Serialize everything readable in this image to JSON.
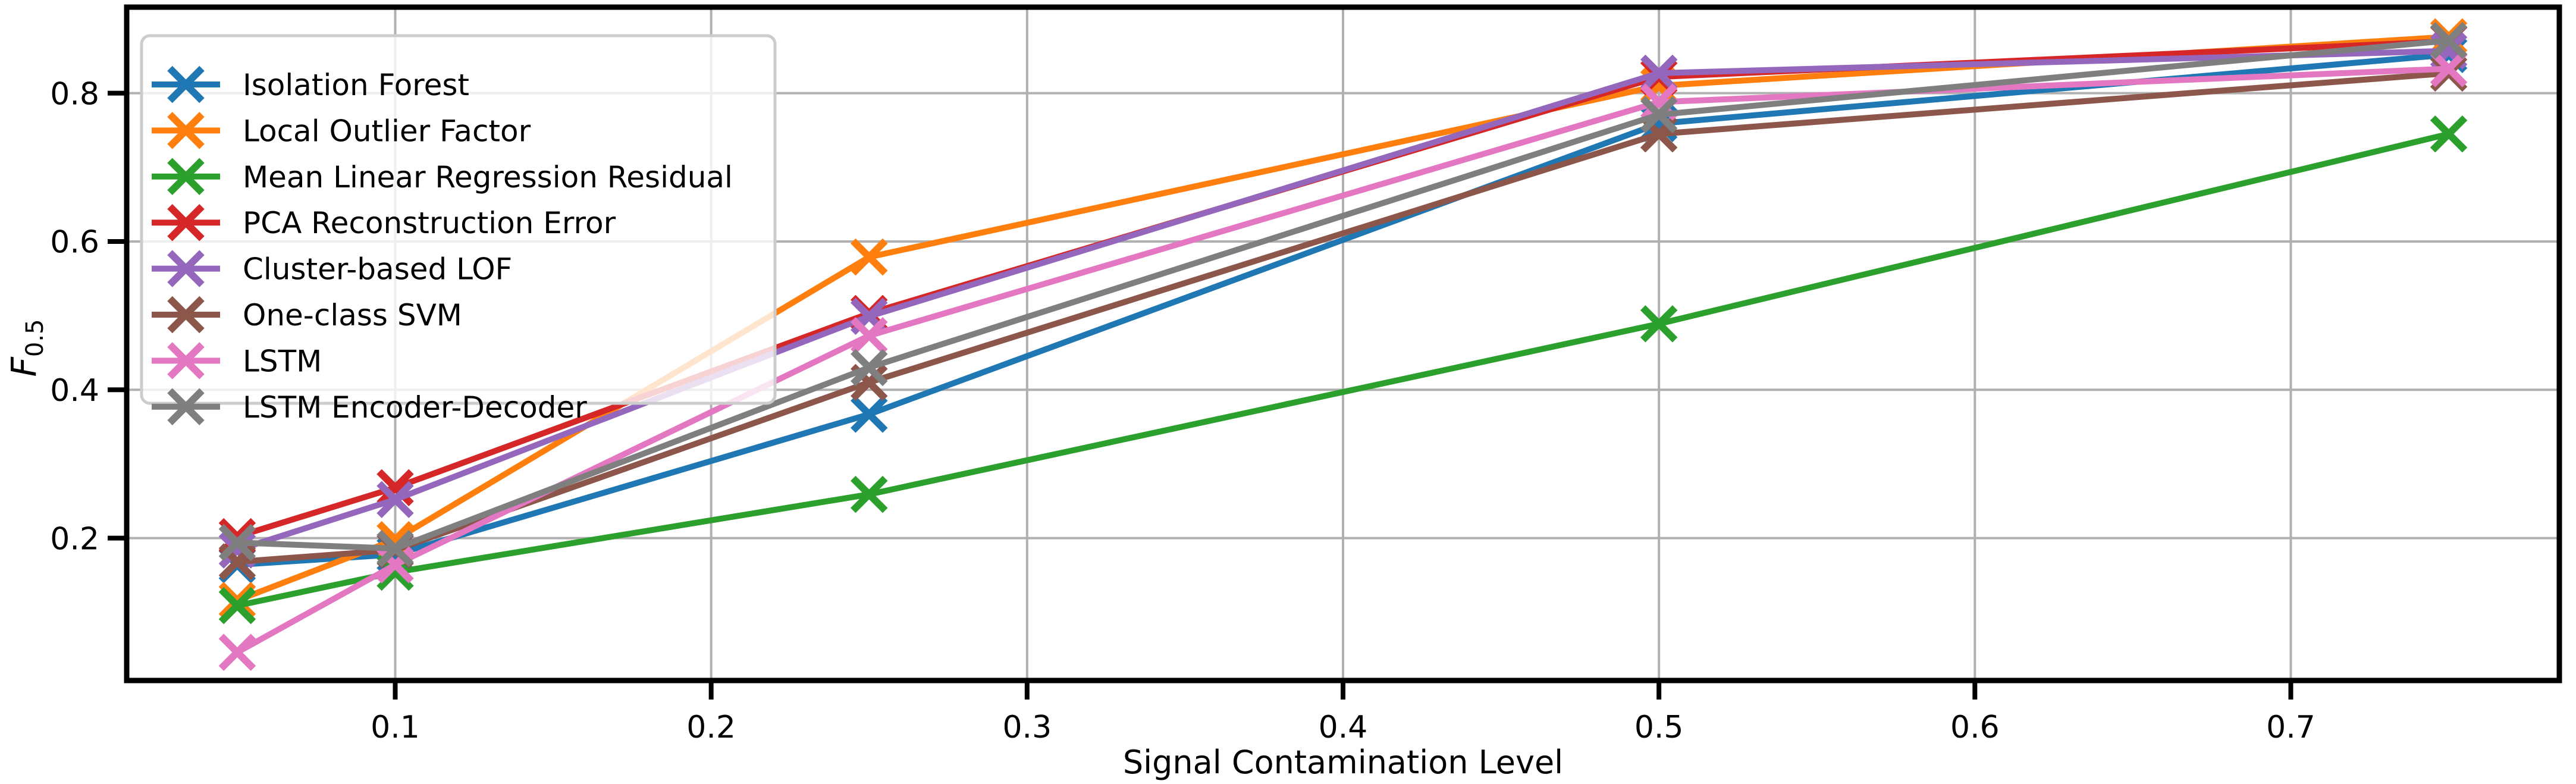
{
  "chart_data": {
    "type": "line",
    "title": "",
    "xlabel": "Signal Contamination Level",
    "ylabel_main": "F",
    "ylabel_sub": "0.5",
    "x": [
      0.05,
      0.1,
      0.25,
      0.5,
      0.75
    ],
    "series": [
      {
        "name": "Isolation Forest",
        "color": "#1f77b4",
        "values": [
          0.164,
          0.178,
          0.367,
          0.759,
          0.852
        ]
      },
      {
        "name": "Local Outlier Factor",
        "color": "#ff7f0e",
        "values": [
          0.116,
          0.198,
          0.579,
          0.81,
          0.876
        ]
      },
      {
        "name": "Mean Linear Regression Residual",
        "color": "#2ca02c",
        "values": [
          0.109,
          0.154,
          0.259,
          0.489,
          0.745
        ]
      },
      {
        "name": "PCA Reconstruction Error",
        "color": "#d62728",
        "values": [
          0.202,
          0.268,
          0.503,
          0.822,
          0.87
        ]
      },
      {
        "name": "Cluster-based LOF",
        "color": "#9467bd",
        "values": [
          0.184,
          0.252,
          0.499,
          0.827,
          0.857
        ]
      },
      {
        "name": "One-class SVM",
        "color": "#8c564b",
        "values": [
          0.168,
          0.184,
          0.41,
          0.745,
          0.827
        ]
      },
      {
        "name": "LSTM",
        "color": "#e377c2",
        "values": [
          0.046,
          0.164,
          0.473,
          0.788,
          0.833
        ]
      },
      {
        "name": "LSTM Encoder-Decoder",
        "color": "#7f7f7f",
        "values": [
          0.194,
          0.186,
          0.43,
          0.771,
          0.871
        ]
      }
    ],
    "xlim": [
      0.015,
      0.785
    ],
    "ylim": [
      0.008,
      0.916
    ],
    "xticks": [
      0.1,
      0.2,
      0.3,
      0.4,
      0.5,
      0.6,
      0.7
    ],
    "xtick_labels": [
      "0.1",
      "0.2",
      "0.3",
      "0.4",
      "0.5",
      "0.6",
      "0.7"
    ],
    "yticks": [
      0.2,
      0.4,
      0.6,
      0.8
    ],
    "ytick_labels": [
      "0.2",
      "0.4",
      "0.6",
      "0.8"
    ],
    "grid": true,
    "grid_color": "#b0b0b0",
    "axes_color": "#000000",
    "background": "#ffffff",
    "legend_position": "upper left",
    "marker": "x"
  }
}
